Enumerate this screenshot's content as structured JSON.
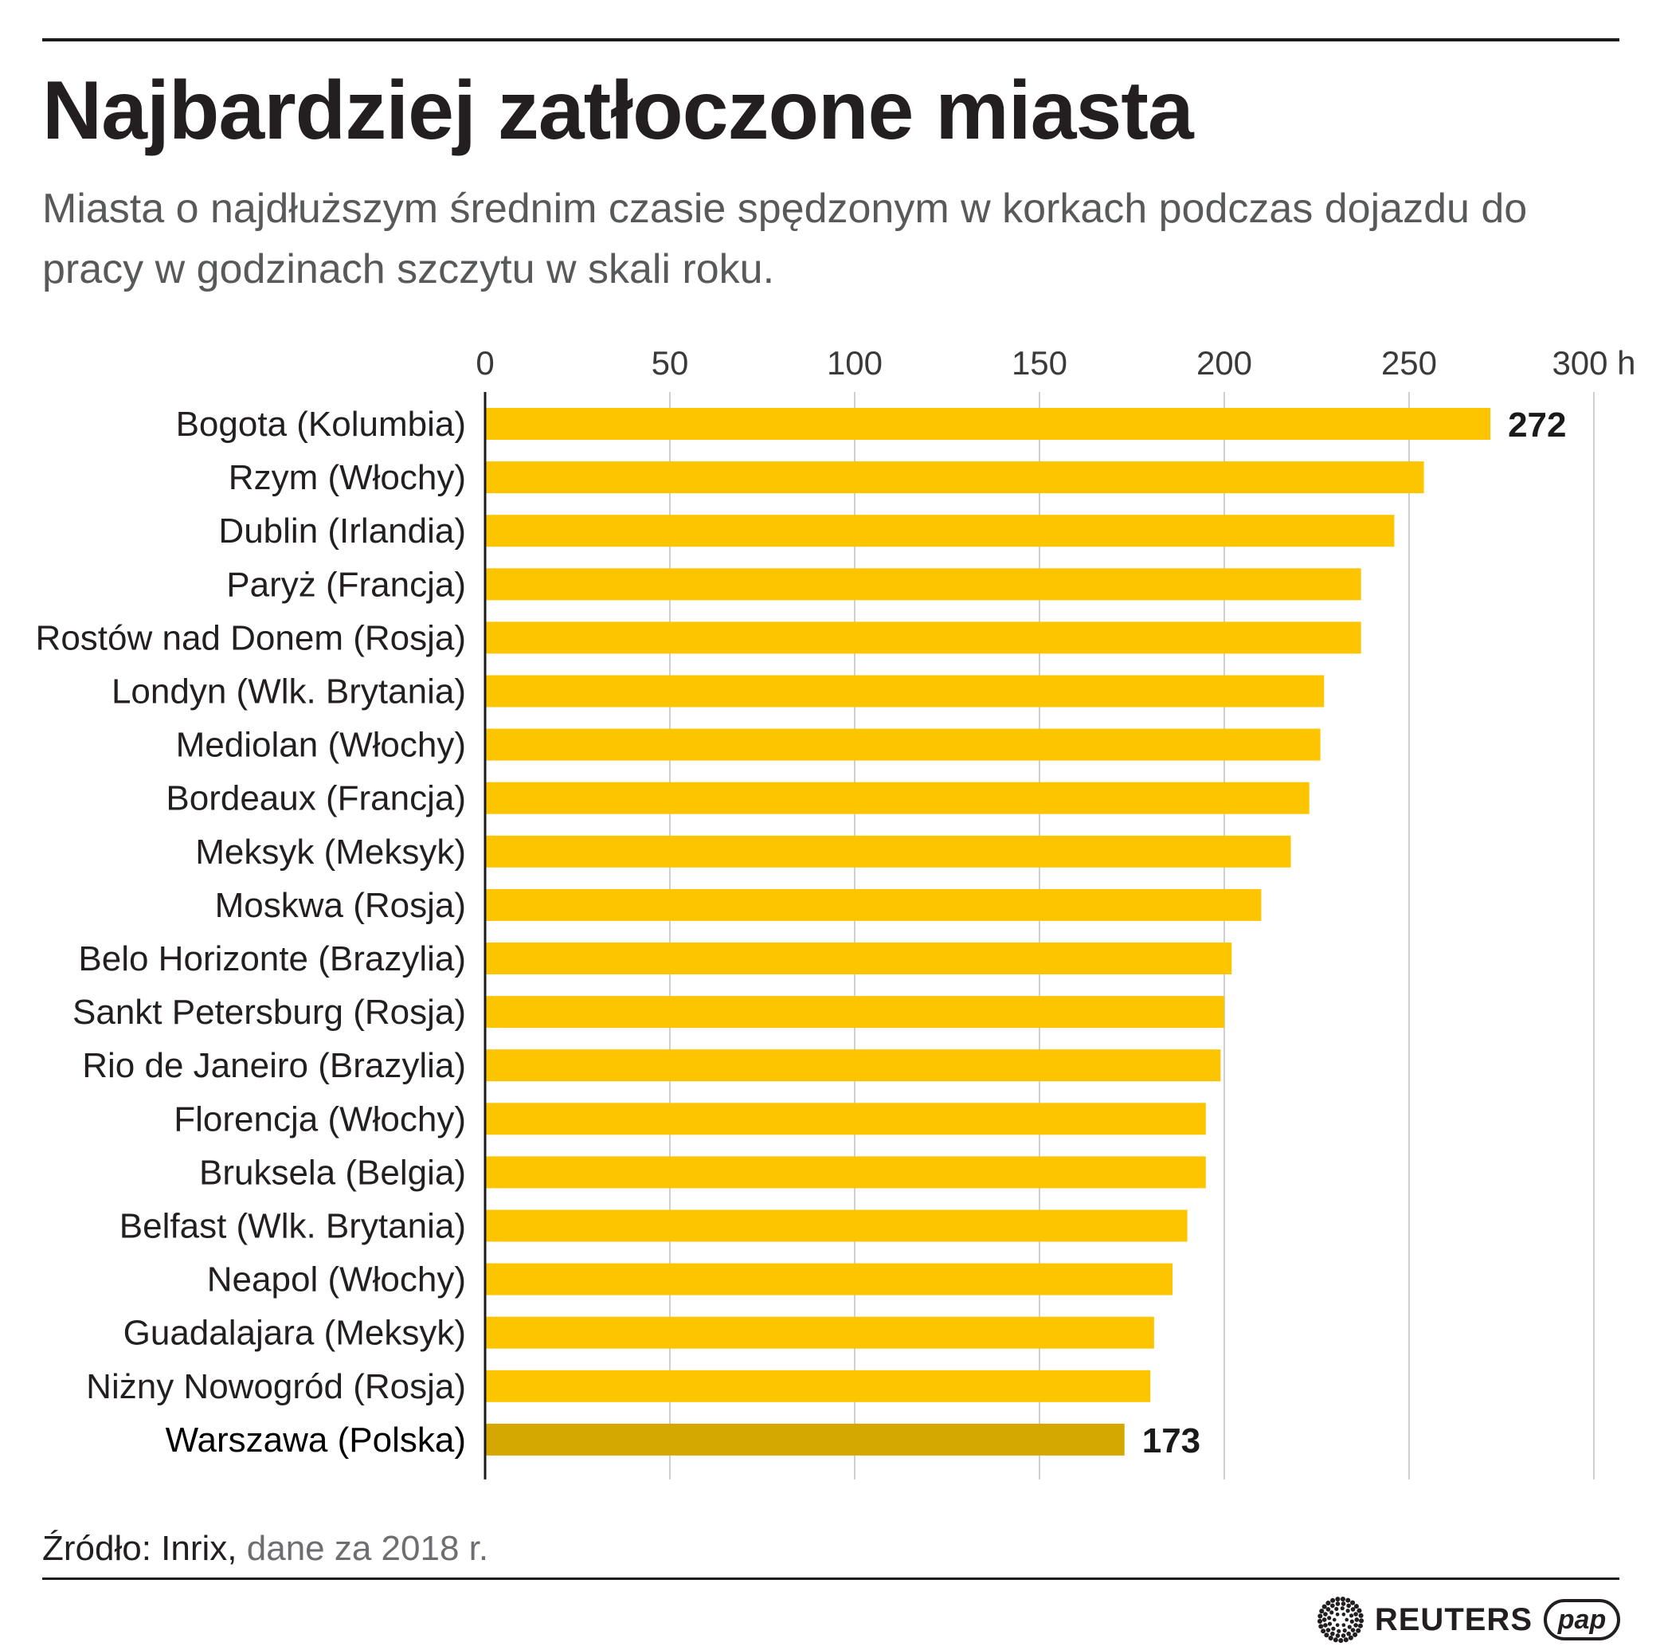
{
  "header": {
    "title": "Najbardziej zatłoczone miasta",
    "subtitle": "Miasta o najdłuższym średnim czasie spędzonym w korkach podczas dojazdu do pracy w godzinach szczytu w skali roku."
  },
  "chart_data": {
    "type": "bar",
    "orientation": "horizontal",
    "categories": [
      "Bogota (Kolumbia)",
      "Rzym (Włochy)",
      "Dublin (Irlandia)",
      "Paryż (Francja)",
      "Rostów nad Donem (Rosja)",
      "Londyn (Wlk. Brytania)",
      "Mediolan (Włochy)",
      "Bordeaux (Francja)",
      "Meksyk (Meksyk)",
      "Moskwa (Rosja)",
      "Belo Horizonte (Brazylia)",
      "Sankt Petersburg (Rosja)",
      "Rio de Janeiro (Brazylia)",
      "Florencja (Włochy)",
      "Bruksela (Belgia)",
      "Belfast (Wlk. Brytania)",
      "Neapol (Włochy)",
      "Guadalajara (Meksyk)",
      "Niżny Nowogród (Rosja)",
      "Warszawa (Polska)"
    ],
    "values": [
      272,
      254,
      246,
      237,
      237,
      227,
      226,
      223,
      218,
      210,
      202,
      200,
      199,
      195,
      195,
      190,
      186,
      181,
      180,
      173
    ],
    "value_labels": {
      "0": "272",
      "19": "173"
    },
    "highlight_index": 19,
    "xlim": [
      0,
      300
    ],
    "ticks": [
      "0",
      "50",
      "100",
      "150",
      "200",
      "250",
      "300 h"
    ],
    "tick_values": [
      0,
      50,
      100,
      150,
      200,
      250,
      300
    ],
    "grid": true,
    "xaxis_position": "top",
    "colors": {
      "bar": "#fcc500",
      "highlight": "#d4a800",
      "grid": "#cfcfcf",
      "axis": "#1a1a1a"
    }
  },
  "footer": {
    "source_label": "Źródło: Inrix,",
    "source_note": "dane za 2018 r.",
    "logos": {
      "reuters": "REUTERS",
      "pap": "pap"
    }
  }
}
